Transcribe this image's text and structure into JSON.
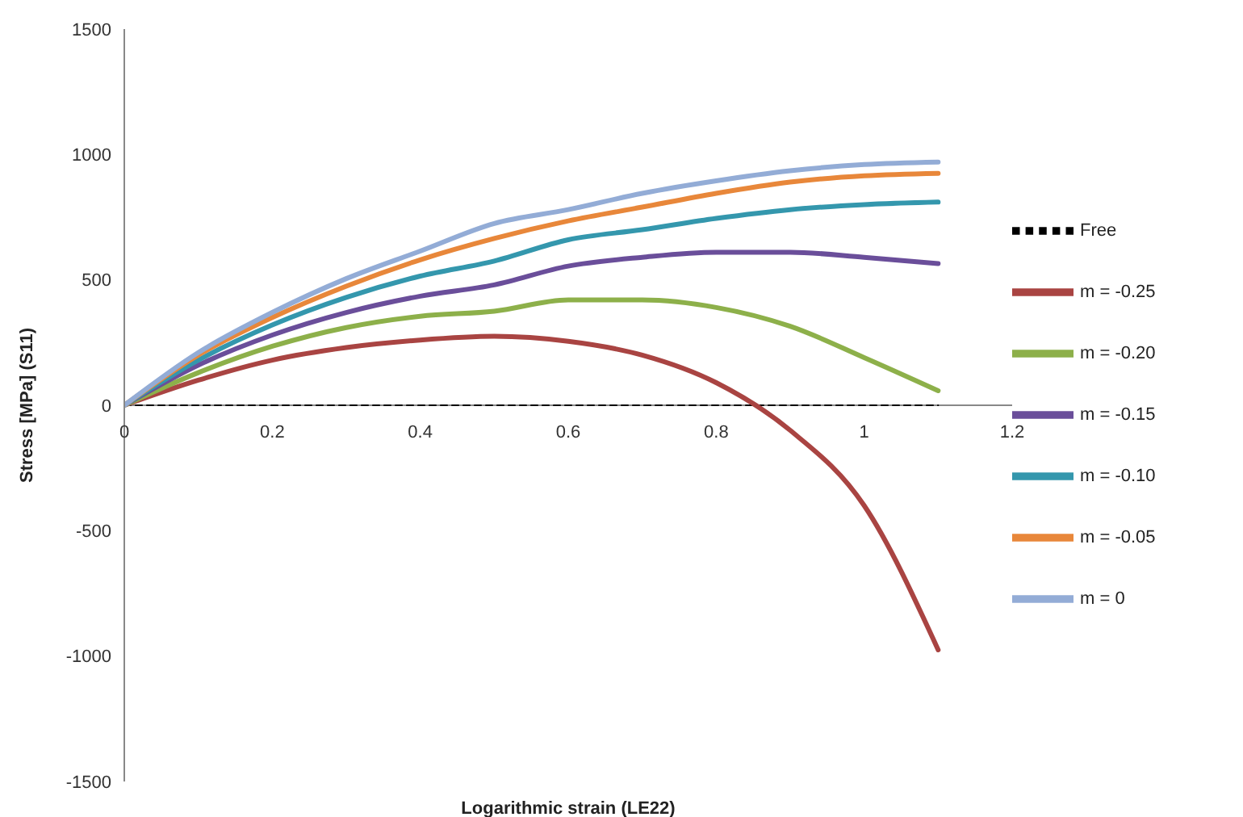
{
  "chart_data": {
    "type": "line",
    "xlabel": "Logarithmic strain (LE22)",
    "ylabel": "Stress [MPa] (S11)",
    "x": [
      0,
      0.1,
      0.2,
      0.3,
      0.4,
      0.5,
      0.6,
      0.7,
      0.8,
      0.9,
      1.0,
      1.1
    ],
    "xlim": [
      0,
      1.2
    ],
    "xticks": [
      0,
      0.2,
      0.4,
      0.6,
      0.8,
      1,
      1.2
    ],
    "ylim": [
      -1500,
      1500
    ],
    "yticks": [
      -1500,
      -1000,
      -500,
      0,
      500,
      1000,
      1500
    ],
    "grid": false,
    "legend": "right",
    "marker": "none",
    "series": [
      {
        "name": "Free",
        "color": "#000000",
        "line_style": "dashed",
        "values": [
          0,
          0,
          0,
          0,
          0,
          0,
          0,
          0,
          0,
          0,
          0,
          0
        ]
      },
      {
        "name": "m = -0.25",
        "color": "#a94442",
        "line_style": "solid",
        "values": [
          0,
          100,
          180,
          230,
          260,
          275,
          255,
          200,
          90,
          -100,
          -400,
          -975
        ]
      },
      {
        "name": "m = -0.20",
        "color": "#8db04a",
        "line_style": "solid",
        "values": [
          0,
          130,
          235,
          310,
          355,
          375,
          420,
          420,
          390,
          315,
          190,
          58
        ]
      },
      {
        "name": "m = -0.15",
        "color": "#6a4e9a",
        "line_style": "solid",
        "values": [
          0,
          160,
          280,
          370,
          435,
          480,
          555,
          590,
          610,
          610,
          590,
          565
        ]
      },
      {
        "name": "m = -0.10",
        "color": "#3497ad",
        "line_style": "solid",
        "values": [
          0,
          180,
          320,
          430,
          515,
          575,
          660,
          700,
          745,
          780,
          800,
          810
        ]
      },
      {
        "name": "m = -0.05",
        "color": "#e8873a",
        "line_style": "solid",
        "values": [
          0,
          200,
          350,
          475,
          580,
          665,
          735,
          790,
          845,
          890,
          915,
          925
        ]
      },
      {
        "name": "m = 0",
        "color": "#93acd6",
        "line_style": "solid",
        "values": [
          0,
          210,
          370,
          505,
          615,
          725,
          780,
          845,
          895,
          935,
          960,
          970
        ]
      }
    ]
  }
}
